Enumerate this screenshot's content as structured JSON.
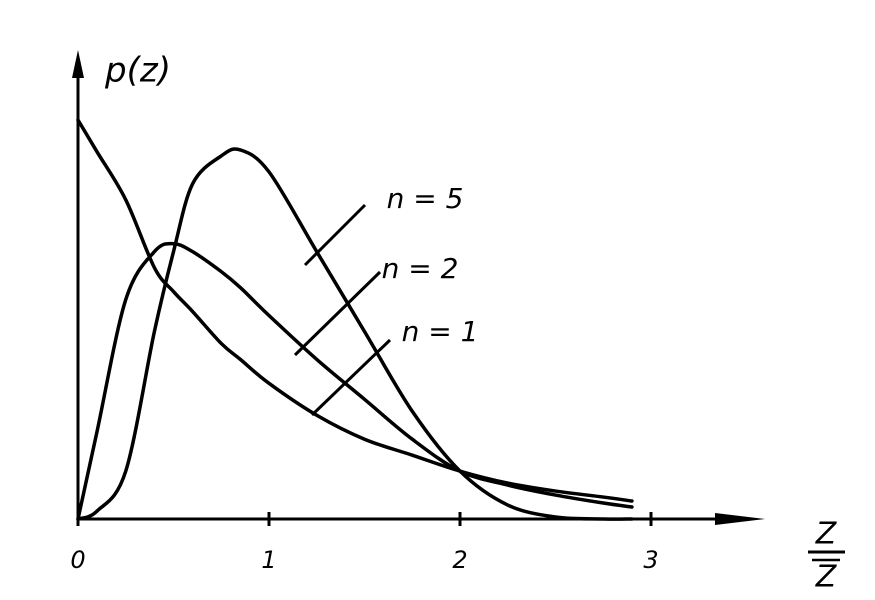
{
  "chart_data": {
    "type": "line",
    "ylabel": "p(z)",
    "xlabel_numerator": "Z",
    "xlabel_denominator": "Z",
    "x": [
      0,
      0.1,
      0.25,
      0.4,
      0.5,
      0.6,
      0.75,
      0.85,
      1,
      1.25,
      1.5,
      1.75,
      2,
      2.25,
      2.5,
      2.75,
      2.9
    ],
    "series": [
      {
        "name": "n = 5",
        "color": "#000000",
        "values": [
          0,
          0.02,
          0.12,
          0.47,
          0.67,
          0.84,
          0.91,
          0.925,
          0.87,
          0.67,
          0.47,
          0.27,
          0.12,
          0.035,
          0.005,
          0,
          0
        ]
      },
      {
        "name": "n = 2",
        "color": "#000000",
        "values": [
          0,
          0.22,
          0.55,
          0.67,
          0.69,
          0.67,
          0.62,
          0.58,
          0.51,
          0.4,
          0.3,
          0.2,
          0.12,
          0.085,
          0.06,
          0.04,
          0.03
        ]
      },
      {
        "name": "n = 1",
        "color": "#000000",
        "values": [
          1.0,
          0.92,
          0.8,
          0.63,
          0.57,
          0.52,
          0.44,
          0.4,
          0.34,
          0.26,
          0.2,
          0.16,
          0.12,
          0.09,
          0.07,
          0.055,
          0.045
        ]
      }
    ],
    "xlim": [
      0,
      3.6
    ],
    "ylim": [
      0,
      1.16
    ],
    "xticks": [
      0,
      1,
      2,
      3
    ]
  }
}
